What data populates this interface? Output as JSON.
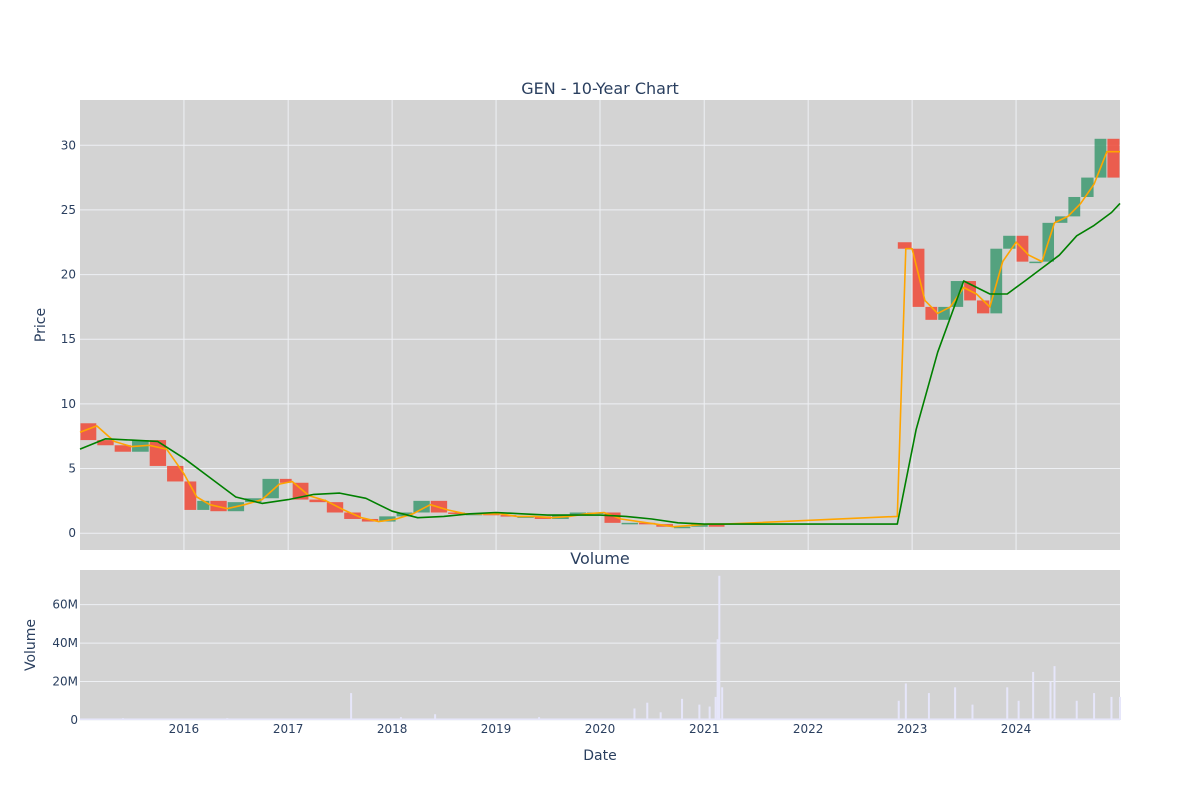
{
  "colors": {
    "plot_bg": "#d3d3d3",
    "grid": "#eef0f4",
    "text": "#2a3f5f",
    "up": "#3d9970",
    "down": "#ef4836",
    "ma_short": "#ffa500",
    "ma_long": "#008000",
    "volume": "#e6e6fa"
  },
  "chart_data": [
    {
      "type": "line",
      "title": "GEN - 10-Year Chart",
      "xlabel": "",
      "ylabel": "Price",
      "x_ticks": [
        "2016",
        "2017",
        "2018",
        "2019",
        "2020",
        "2021",
        "2022",
        "2023",
        "2024"
      ],
      "y_ticks": [
        "0",
        "5",
        "10",
        "15",
        "20",
        "25",
        "30"
      ],
      "xlim": [
        "2015-01-01",
        "2024-12-31"
      ],
      "ylim": [
        -1.3,
        33.5
      ],
      "grid": true,
      "series": [
        {
          "kind": "candlestick",
          "x": [
            "2015-01-01",
            "2015-03-01",
            "2015-05-01",
            "2015-07-01",
            "2015-09-01",
            "2015-11-01",
            "2016-01-01",
            "2016-02-15",
            "2016-04-01",
            "2016-06-01",
            "2016-08-01",
            "2016-10-01",
            "2016-12-01",
            "2017-01-15",
            "2017-03-15",
            "2017-05-15",
            "2017-07-15",
            "2017-09-15",
            "2017-11-15",
            "2018-01-15",
            "2018-03-15",
            "2018-05-15",
            "2018-07-15",
            "2018-09-15",
            "2018-11-15",
            "2019-01-15",
            "2019-03-15",
            "2019-05-15",
            "2019-07-15",
            "2019-09-15",
            "2019-11-15",
            "2020-01-15",
            "2020-03-15",
            "2020-05-15",
            "2020-07-15",
            "2020-09-15",
            "2020-11-15",
            "2021-01-15",
            "2021-03-15",
            "2022-11-10",
            "2023-01-01",
            "2023-02-15",
            "2023-04-01",
            "2023-05-15",
            "2023-07-01",
            "2023-08-15",
            "2023-10-01",
            "2023-11-15",
            "2024-01-01",
            "2024-02-15",
            "2024-04-01",
            "2024-05-15",
            "2024-07-01",
            "2024-08-15",
            "2024-10-01",
            "2024-11-15",
            "2024-12-31"
          ],
          "close": [
            8.5,
            7.2,
            6.8,
            6.3,
            7.2,
            5.2,
            4.0,
            1.8,
            2.5,
            1.7,
            2.4,
            2.7,
            4.2,
            3.9,
            2.6,
            2.4,
            1.6,
            1.1,
            0.9,
            1.3,
            1.6,
            2.5,
            1.6,
            1.5,
            1.5,
            1.4,
            1.3,
            1.3,
            1.1,
            1.4,
            1.6,
            1.6,
            0.8,
            0.8,
            0.7,
            0.5,
            0.5,
            0.7,
            0.5,
            22.5,
            22.0,
            17.5,
            16.5,
            17.5,
            19.5,
            18.0,
            17.0,
            22.0,
            23.0,
            21.0,
            21.0,
            24.0,
            24.5,
            26.0,
            27.5,
            30.5,
            27.5
          ]
        },
        {
          "kind": "line",
          "x": [
            "2015-01-01",
            "2015-03-01",
            "2015-05-01",
            "2015-07-01",
            "2015-09-01",
            "2015-11-01",
            "2016-01-01",
            "2016-02-15",
            "2016-04-01",
            "2016-06-01",
            "2016-08-01",
            "2016-10-01",
            "2016-12-01",
            "2017-01-15",
            "2017-03-15",
            "2017-05-15",
            "2017-07-15",
            "2017-09-15",
            "2017-11-15",
            "2018-01-15",
            "2018-03-15",
            "2018-05-15",
            "2018-07-15",
            "2018-09-15",
            "2018-11-15",
            "2019-01-15",
            "2019-03-15",
            "2019-05-15",
            "2019-07-15",
            "2019-09-15",
            "2019-11-15",
            "2020-01-15",
            "2020-03-15",
            "2020-05-15",
            "2020-07-15",
            "2020-09-15",
            "2020-11-15",
            "2021-01-15",
            "2021-03-15",
            "2022-11-10",
            "2022-12-10",
            "2023-01-01",
            "2023-02-15",
            "2023-04-01",
            "2023-05-15",
            "2023-07-01",
            "2023-08-15",
            "2023-10-01",
            "2023-11-15",
            "2024-01-01",
            "2024-02-15",
            "2024-04-01",
            "2024-05-15",
            "2024-07-01",
            "2024-08-15",
            "2024-10-01",
            "2024-11-15",
            "2024-12-31"
          ],
          "values": [
            7.8,
            8.3,
            7.1,
            6.7,
            6.8,
            6.5,
            4.6,
            2.8,
            2.2,
            1.9,
            2.2,
            2.6,
            3.8,
            4.0,
            2.9,
            2.5,
            1.8,
            1.2,
            0.9,
            1.1,
            1.5,
            2.2,
            1.8,
            1.5,
            1.5,
            1.5,
            1.3,
            1.3,
            1.2,
            1.3,
            1.5,
            1.6,
            1.1,
            0.9,
            0.7,
            0.5,
            0.6,
            0.7,
            0.7,
            1.3,
            22.0,
            22.0,
            18.0,
            17.0,
            17.5,
            19.0,
            18.5,
            17.5,
            21.0,
            22.5,
            21.5,
            21.0,
            24.0,
            24.5,
            25.5,
            27.0,
            29.5,
            29.5
          ]
        },
        {
          "kind": "line",
          "x": [
            "2015-01-01",
            "2015-04-01",
            "2015-07-01",
            "2015-10-01",
            "2016-01-01",
            "2016-04-01",
            "2016-07-01",
            "2016-10-01",
            "2017-01-01",
            "2017-04-01",
            "2017-07-01",
            "2017-10-01",
            "2018-01-01",
            "2018-04-01",
            "2018-07-01",
            "2018-10-01",
            "2019-01-01",
            "2019-04-01",
            "2019-07-01",
            "2019-10-01",
            "2020-01-01",
            "2020-04-01",
            "2020-07-01",
            "2020-10-01",
            "2021-01-01",
            "2021-03-15",
            "2022-11-10",
            "2023-01-15",
            "2023-04-01",
            "2023-07-01",
            "2023-10-01",
            "2023-12-01",
            "2024-02-01",
            "2024-04-01",
            "2024-06-01",
            "2024-08-01",
            "2024-10-01",
            "2024-12-01",
            "2024-12-31"
          ],
          "values": [
            6.5,
            7.3,
            7.2,
            7.1,
            5.8,
            4.3,
            2.8,
            2.3,
            2.6,
            3.0,
            3.1,
            2.7,
            1.7,
            1.2,
            1.3,
            1.5,
            1.6,
            1.5,
            1.4,
            1.4,
            1.4,
            1.3,
            1.1,
            0.8,
            0.7,
            0.7,
            0.7,
            8.0,
            14.0,
            19.5,
            18.5,
            18.5,
            19.5,
            20.5,
            21.5,
            23.0,
            23.8,
            24.8,
            25.5
          ]
        }
      ]
    },
    {
      "type": "bar",
      "title": "Volume",
      "xlabel": "Date",
      "ylabel": "Volume",
      "x_ticks": [
        "2016",
        "2017",
        "2018",
        "2019",
        "2020",
        "2021",
        "2022",
        "2023",
        "2024"
      ],
      "y_ticks": [
        "0",
        "20M",
        "40M",
        "60M"
      ],
      "xlim": [
        "2015-01-01",
        "2024-12-31"
      ],
      "ylim": [
        0,
        78
      ],
      "grid": true,
      "x": [
        "2015-06-01",
        "2016-06-01",
        "2017-08-10",
        "2018-02-01",
        "2018-06-01",
        "2019-06-01",
        "2020-05-01",
        "2020-06-15",
        "2020-08-01",
        "2020-10-15",
        "2020-12-15",
        "2021-01-20",
        "2021-02-10",
        "2021-02-17",
        "2021-02-23",
        "2021-03-05",
        "2022-11-15",
        "2022-12-10",
        "2023-03-01",
        "2023-06-01",
        "2023-08-01",
        "2023-12-01",
        "2024-01-10",
        "2024-03-01",
        "2024-05-01",
        "2024-05-15",
        "2024-08-01",
        "2024-10-01",
        "2024-12-01",
        "2024-12-31"
      ],
      "values": [
        1,
        1,
        14,
        1.5,
        3,
        1.5,
        6,
        9,
        4,
        11,
        8,
        7,
        12,
        42,
        75,
        17,
        10,
        19,
        14,
        17,
        8,
        17,
        10,
        25,
        20,
        28,
        10,
        14,
        12,
        12
      ]
    }
  ]
}
